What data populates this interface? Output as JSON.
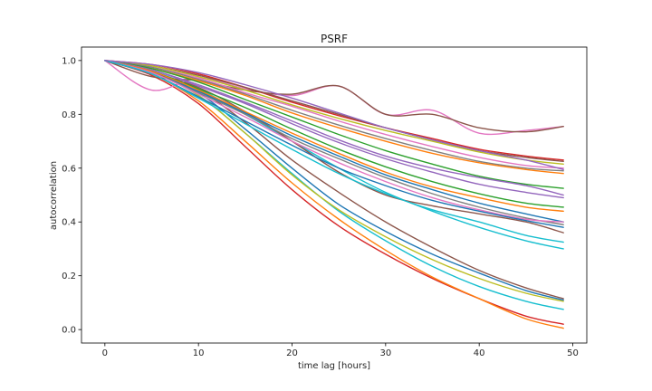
{
  "chart_data": {
    "type": "line",
    "title": "PSRF",
    "xlabel": "time lag [hours]",
    "ylabel": "autocorrelation",
    "xlim": [
      -2.5,
      51.5
    ],
    "ylim": [
      -0.05,
      1.05
    ],
    "xticks": [
      0,
      10,
      20,
      30,
      40,
      50
    ],
    "yticks": [
      0.0,
      0.2,
      0.4,
      0.6,
      0.8,
      1.0
    ],
    "grid": false,
    "legend": "none",
    "x": [
      0,
      5,
      10,
      15,
      20,
      25,
      30,
      35,
      40,
      45,
      49
    ],
    "series": [
      {
        "color": "#d62728",
        "values": [
          1.0,
          0.945,
          0.84,
          0.68,
          0.52,
          0.385,
          0.28,
          0.19,
          0.115,
          0.05,
          0.02
        ]
      },
      {
        "color": "#ff7f0e",
        "values": [
          1.0,
          0.95,
          0.85,
          0.7,
          0.545,
          0.41,
          0.295,
          0.195,
          0.115,
          0.04,
          0.005
        ]
      },
      {
        "color": "#17becf",
        "values": [
          1.0,
          0.955,
          0.87,
          0.73,
          0.58,
          0.44,
          0.33,
          0.235,
          0.16,
          0.105,
          0.075
        ]
      },
      {
        "color": "#bcbd22",
        "values": [
          1.0,
          0.955,
          0.87,
          0.73,
          0.575,
          0.445,
          0.345,
          0.26,
          0.19,
          0.135,
          0.105
        ]
      },
      {
        "color": "#1f77b4",
        "values": [
          1.0,
          0.96,
          0.88,
          0.745,
          0.6,
          0.465,
          0.365,
          0.28,
          0.21,
          0.145,
          0.11
        ]
      },
      {
        "color": "#8c564b",
        "values": [
          1.0,
          0.96,
          0.89,
          0.77,
          0.63,
          0.51,
          0.4,
          0.305,
          0.22,
          0.155,
          0.115
        ]
      },
      {
        "color": "#17becf",
        "values": [
          1.0,
          0.96,
          0.895,
          0.8,
          0.7,
          0.6,
          0.51,
          0.44,
          0.38,
          0.33,
          0.3
        ]
      },
      {
        "color": "#8c564b",
        "values": [
          1.0,
          0.955,
          0.9,
          0.81,
          0.7,
          0.585,
          0.5,
          0.46,
          0.43,
          0.4,
          0.36
        ]
      },
      {
        "color": "#e377c2",
        "values": [
          1.0,
          0.89,
          0.935,
          0.895,
          0.87,
          0.905,
          0.8,
          0.815,
          0.73,
          0.74,
          0.755
        ]
      },
      {
        "color": "#8c564b",
        "values": [
          1.0,
          0.94,
          0.925,
          0.89,
          0.875,
          0.905,
          0.8,
          0.8,
          0.75,
          0.735,
          0.755
        ]
      },
      {
        "color": "#d62728",
        "values": [
          1.0,
          0.985,
          0.95,
          0.9,
          0.845,
          0.795,
          0.75,
          0.71,
          0.67,
          0.645,
          0.63
        ]
      },
      {
        "color": "#8c564b",
        "values": [
          1.0,
          0.98,
          0.945,
          0.9,
          0.85,
          0.8,
          0.75,
          0.705,
          0.665,
          0.64,
          0.625
        ]
      },
      {
        "color": "#bcbd22",
        "values": [
          1.0,
          0.98,
          0.94,
          0.89,
          0.835,
          0.785,
          0.74,
          0.7,
          0.66,
          0.63,
          0.615
        ]
      },
      {
        "color": "#e377c2",
        "values": [
          1.0,
          0.975,
          0.935,
          0.88,
          0.83,
          0.775,
          0.725,
          0.68,
          0.64,
          0.61,
          0.6
        ]
      },
      {
        "color": "#7f7f7f",
        "values": [
          1.0,
          0.975,
          0.93,
          0.875,
          0.815,
          0.76,
          0.71,
          0.665,
          0.625,
          0.6,
          0.59
        ]
      },
      {
        "color": "#ff7f0e",
        "values": [
          1.0,
          0.97,
          0.925,
          0.87,
          0.805,
          0.75,
          0.7,
          0.655,
          0.62,
          0.595,
          0.58
        ]
      },
      {
        "color": "#2ca02c",
        "values": [
          1.0,
          0.97,
          0.92,
          0.855,
          0.79,
          0.725,
          0.665,
          0.615,
          0.57,
          0.54,
          0.525
        ]
      },
      {
        "color": "#9467bd",
        "values": [
          1.0,
          0.965,
          0.91,
          0.845,
          0.775,
          0.705,
          0.645,
          0.6,
          0.565,
          0.535,
          0.5
        ]
      },
      {
        "color": "#9467bd",
        "values": [
          1.0,
          0.965,
          0.905,
          0.84,
          0.765,
          0.695,
          0.635,
          0.585,
          0.54,
          0.51,
          0.49
        ]
      },
      {
        "color": "#2ca02c",
        "values": [
          1.0,
          0.96,
          0.895,
          0.825,
          0.745,
          0.67,
          0.605,
          0.55,
          0.505,
          0.47,
          0.455
        ]
      },
      {
        "color": "#ff7f0e",
        "values": [
          1.0,
          0.96,
          0.89,
          0.81,
          0.73,
          0.655,
          0.585,
          0.53,
          0.49,
          0.455,
          0.44
        ]
      },
      {
        "color": "#1f77b4",
        "values": [
          1.0,
          0.955,
          0.885,
          0.805,
          0.72,
          0.645,
          0.575,
          0.52,
          0.47,
          0.43,
          0.4
        ]
      },
      {
        "color": "#7f7f7f",
        "values": [
          1.0,
          0.955,
          0.88,
          0.8,
          0.71,
          0.635,
          0.565,
          0.505,
          0.455,
          0.415,
          0.39
        ]
      },
      {
        "color": "#e377c2",
        "values": [
          1.0,
          0.955,
          0.875,
          0.79,
          0.7,
          0.62,
          0.55,
          0.49,
          0.445,
          0.41,
          0.4
        ]
      },
      {
        "color": "#1f77b4",
        "values": [
          1.0,
          0.95,
          0.865,
          0.775,
          0.685,
          0.6,
          0.535,
          0.48,
          0.44,
          0.405,
          0.38
        ]
      },
      {
        "color": "#17becf",
        "values": [
          1.0,
          0.95,
          0.86,
          0.765,
          0.67,
          0.58,
          0.505,
          0.445,
          0.4,
          0.35,
          0.325
        ]
      },
      {
        "color": "#9467bd",
        "values": [
          1.0,
          0.985,
          0.955,
          0.91,
          0.86,
          0.805,
          0.75,
          0.705,
          0.665,
          0.63,
          0.595
        ]
      }
    ]
  }
}
